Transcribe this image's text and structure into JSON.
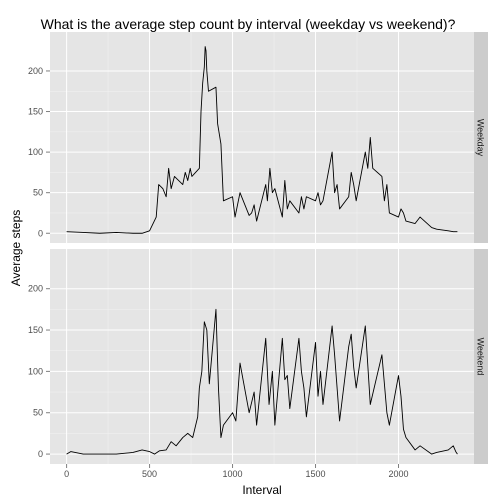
{
  "chart_data": {
    "type": "line",
    "title": "What is the average step count by interval (weekday vs weekend)?",
    "xlabel": "Interval",
    "ylabel": "Average steps",
    "xlim": [
      -100,
      2455
    ],
    "ylim": [
      -12,
      248
    ],
    "x_ticks": [
      0,
      500,
      1000,
      1500,
      2000
    ],
    "y_ticks": [
      0,
      50,
      100,
      150,
      200
    ],
    "grid": true,
    "line_color": "#000000",
    "panel_background": "#e5e5e5",
    "strip_background": "#cccccc",
    "facets": [
      {
        "label": "Weekday",
        "series": [
          {
            "x": [
              0,
              100,
              200,
              300,
              400,
              455,
              500,
              540,
              555,
              580,
              600,
              615,
              630,
              650,
              700,
              715,
              730,
              745,
              755,
              800,
              810,
              820,
              830,
              835,
              840,
              845,
              855,
              900,
              910,
              930,
              945,
              1000,
              1015,
              1030,
              1045,
              1100,
              1115,
              1130,
              1145,
              1200,
              1210,
              1225,
              1240,
              1255,
              1300,
              1315,
              1330,
              1345,
              1400,
              1415,
              1430,
              1445,
              1500,
              1515,
              1530,
              1545,
              1600,
              1615,
              1630,
              1645,
              1700,
              1715,
              1730,
              1745,
              1800,
              1815,
              1830,
              1845,
              1900,
              1915,
              1930,
              1945,
              2000,
              2015,
              2030,
              2045,
              2100,
              2130,
              2200,
              2230,
              2300,
              2330,
              2355
            ],
            "y": [
              2,
              1,
              0,
              1,
              0,
              0,
              3,
              20,
              60,
              55,
              45,
              80,
              55,
              70,
              60,
              75,
              65,
              80,
              70,
              80,
              150,
              185,
              205,
              230,
              225,
              200,
              175,
              180,
              135,
              110,
              40,
              45,
              20,
              35,
              50,
              22,
              25,
              35,
              15,
              60,
              40,
              80,
              50,
              55,
              20,
              65,
              30,
              40,
              25,
              45,
              30,
              45,
              40,
              50,
              35,
              40,
              100,
              50,
              60,
              30,
              45,
              75,
              60,
              40,
              100,
              80,
              118,
              80,
              70,
              40,
              60,
              25,
              20,
              30,
              25,
              15,
              12,
              20,
              7,
              5,
              3,
              2,
              2
            ]
          }
        ]
      },
      {
        "label": "Weekend",
        "series": [
          {
            "x": [
              0,
              25,
              100,
              200,
              300,
              400,
              455,
              500,
              530,
              560,
              600,
              630,
              660,
              700,
              730,
              760,
              790,
              800,
              815,
              830,
              845,
              860,
              880,
              900,
              915,
              930,
              945,
              1000,
              1020,
              1045,
              1100,
              1130,
              1145,
              1200,
              1220,
              1240,
              1255,
              1300,
              1315,
              1330,
              1345,
              1400,
              1415,
              1430,
              1445,
              1500,
              1515,
              1530,
              1545,
              1600,
              1615,
              1630,
              1645,
              1700,
              1715,
              1730,
              1745,
              1800,
              1830,
              1900,
              1930,
              1945,
              2000,
              2015,
              2030,
              2045,
              2100,
              2130,
              2200,
              2230,
              2300,
              2330,
              2345,
              2355
            ],
            "y": [
              0,
              3,
              0,
              0,
              0,
              2,
              5,
              3,
              0,
              4,
              5,
              15,
              10,
              20,
              25,
              20,
              45,
              80,
              100,
              160,
              150,
              85,
              130,
              175,
              80,
              20,
              35,
              50,
              40,
              110,
              50,
              75,
              35,
              140,
              60,
              100,
              35,
              140,
              90,
              95,
              55,
              140,
              100,
              80,
              45,
              135,
              70,
              100,
              60,
              155,
              120,
              80,
              40,
              130,
              145,
              105,
              80,
              155,
              60,
              120,
              50,
              35,
              95,
              70,
              30,
              20,
              5,
              10,
              0,
              2,
              5,
              10,
              3,
              0
            ]
          }
        ]
      }
    ]
  }
}
